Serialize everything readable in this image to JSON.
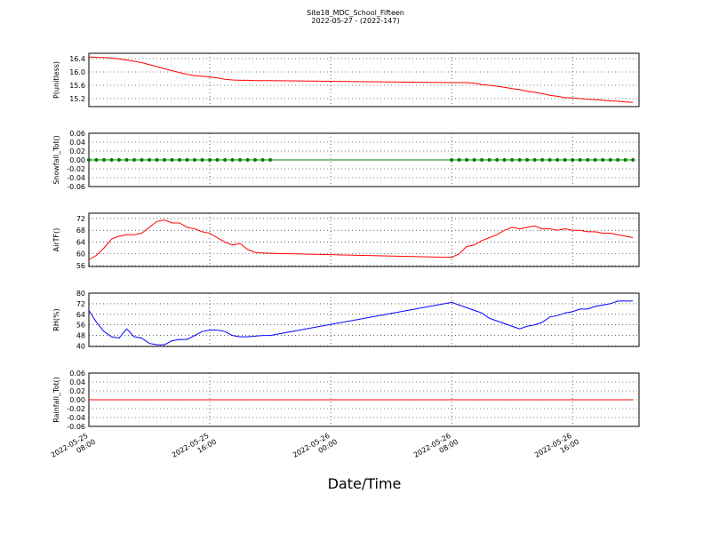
{
  "chart_data": {
    "type": "line",
    "title": "Site18_MDC_School_Fifteen",
    "subtitle": "2022-05-27 - (2022-147)",
    "x_label": "Date/Time",
    "xlim": [
      "2022-05-25 08:00",
      "2022-05-26 20:24"
    ],
    "xticks": [
      {
        "value": "2022-05-25 08:00",
        "label": [
          "2022-05-25",
          "08:00"
        ]
      },
      {
        "value": "2022-05-25 16:00",
        "label": [
          "2022-05-25",
          "16:00"
        ]
      },
      {
        "value": "2022-05-26 00:00",
        "label": [
          "2022-05-26",
          "00:00"
        ]
      },
      {
        "value": "2022-05-26 08:00",
        "label": [
          "2022-05-26",
          "08:00"
        ]
      },
      {
        "value": "2022-05-26 16:00",
        "label": [
          "2022-05-26",
          "16:00"
        ]
      }
    ],
    "grid": true,
    "x": [
      "2022-05-25 08:00",
      "2022-05-25 08:30",
      "2022-05-25 09:00",
      "2022-05-25 09:30",
      "2022-05-25 10:00",
      "2022-05-25 10:30",
      "2022-05-25 11:00",
      "2022-05-25 11:30",
      "2022-05-25 12:00",
      "2022-05-25 12:30",
      "2022-05-25 13:00",
      "2022-05-25 13:30",
      "2022-05-25 14:00",
      "2022-05-25 14:30",
      "2022-05-25 15:00",
      "2022-05-25 15:30",
      "2022-05-25 16:00",
      "2022-05-25 16:30",
      "2022-05-25 17:00",
      "2022-05-25 17:30",
      "2022-05-25 18:00",
      "2022-05-25 18:30",
      "2022-05-25 19:00",
      "2022-05-25 19:30",
      "2022-05-25 20:00",
      "2022-05-26 08:00",
      "2022-05-26 08:30",
      "2022-05-26 09:00",
      "2022-05-26 09:30",
      "2022-05-26 10:00",
      "2022-05-26 10:30",
      "2022-05-26 11:00",
      "2022-05-26 11:30",
      "2022-05-26 12:00",
      "2022-05-26 12:30",
      "2022-05-26 13:00",
      "2022-05-26 13:30",
      "2022-05-26 14:00",
      "2022-05-26 14:30",
      "2022-05-26 15:00",
      "2022-05-26 15:30",
      "2022-05-26 16:00",
      "2022-05-26 16:30",
      "2022-05-26 17:00",
      "2022-05-26 17:30",
      "2022-05-26 18:00",
      "2022-05-26 18:30",
      "2022-05-26 19:00",
      "2022-05-26 19:30",
      "2022-05-26 20:00"
    ],
    "panels": [
      {
        "y_label": "P(unitless)",
        "color": "#ff0000",
        "ylim": [
          14.96,
          16.56
        ],
        "yticks": [
          15.2,
          15.6,
          {
            "value": 16,
            "label": "16.0"
          },
          16.4
        ],
        "values": [
          16.45,
          16.44,
          16.43,
          16.42,
          16.39,
          16.36,
          16.32,
          16.28,
          16.22,
          16.16,
          16.1,
          16.04,
          15.98,
          15.93,
          15.89,
          15.87,
          15.85,
          15.82,
          15.78,
          15.76,
          15.75,
          15.75,
          15.74,
          15.74,
          15.74,
          15.68,
          15.68,
          15.68,
          15.66,
          15.62,
          15.6,
          15.57,
          15.54,
          15.5,
          15.47,
          15.42,
          15.39,
          15.35,
          15.3,
          15.27,
          15.23,
          15.22,
          15.2,
          15.18,
          15.17,
          15.15,
          15.13,
          15.12,
          15.1,
          15.09
        ]
      },
      {
        "y_label": "Snowfall_Tot()",
        "color": "#008000",
        "markers": true,
        "ylim": [
          -0.06,
          0.06
        ],
        "yticks": [
          -0.06,
          -0.04,
          -0.02,
          {
            "value": 0,
            "label": "0.00"
          },
          0.02,
          0.04,
          0.06
        ],
        "values": [
          0,
          0,
          0,
          0,
          0,
          0,
          0,
          0,
          0,
          0,
          0,
          0,
          0,
          0,
          0,
          0,
          0,
          0,
          0,
          0,
          0,
          0,
          0,
          0,
          0,
          0,
          0,
          0,
          0,
          0,
          0,
          0,
          0,
          0,
          0,
          0,
          0,
          0,
          0,
          0,
          0,
          0,
          0,
          0,
          0,
          0,
          0,
          0,
          0,
          0
        ]
      },
      {
        "y_label": "AirTF()",
        "color": "#ff0000",
        "ylim": [
          55.7,
          73.8
        ],
        "yticks": [
          56,
          60,
          64,
          68,
          72
        ],
        "values": [
          58,
          59.5,
          62,
          65,
          66,
          66.5,
          66.5,
          67,
          69,
          71,
          71.5,
          70.5,
          70.5,
          69,
          68.5,
          67.5,
          67,
          65.5,
          64,
          63,
          63.5,
          61.5,
          60.5,
          60.3,
          60.2,
          58.8,
          60,
          62.5,
          63,
          64.5,
          65.5,
          66.5,
          68,
          69,
          68.5,
          69,
          69.5,
          68.5,
          68.5,
          68,
          68.5,
          68,
          68,
          67.5,
          67.5,
          67,
          67,
          66.5,
          66,
          65.5
        ]
      },
      {
        "y_label": "RH(%)",
        "color": "#0000ff",
        "ylim": [
          39.7,
          80
        ],
        "yticks": [
          40,
          48,
          56,
          64,
          72,
          80
        ],
        "values": [
          67,
          58,
          51,
          47,
          46,
          53,
          47,
          46,
          42,
          41,
          41,
          44,
          45,
          45,
          48,
          51,
          52,
          52,
          51,
          48,
          47,
          47,
          47.5,
          48,
          48,
          73,
          71,
          69,
          67,
          65,
          61,
          59,
          57,
          55,
          53,
          55,
          56,
          58,
          62,
          63,
          65,
          66,
          68,
          68,
          70,
          71,
          72,
          74,
          74,
          74
        ]
      },
      {
        "y_label": "Rainfall_Tot()",
        "color": "#ff0000",
        "ylim": [
          -0.06,
          0.06
        ],
        "yticks": [
          -0.06,
          -0.04,
          -0.02,
          {
            "value": 0,
            "label": "0.00"
          },
          0.02,
          0.04,
          0.06
        ],
        "values": [
          0,
          0,
          0,
          0,
          0,
          0,
          0,
          0,
          0,
          0,
          0,
          0,
          0,
          0,
          0,
          0,
          0,
          0,
          0,
          0,
          0,
          0,
          0,
          0,
          0,
          0,
          0,
          0,
          0,
          0,
          0,
          0,
          0,
          0,
          0,
          0,
          0,
          0,
          0,
          0,
          0,
          0,
          0,
          0,
          0,
          0,
          0,
          0,
          0,
          0
        ]
      }
    ]
  }
}
